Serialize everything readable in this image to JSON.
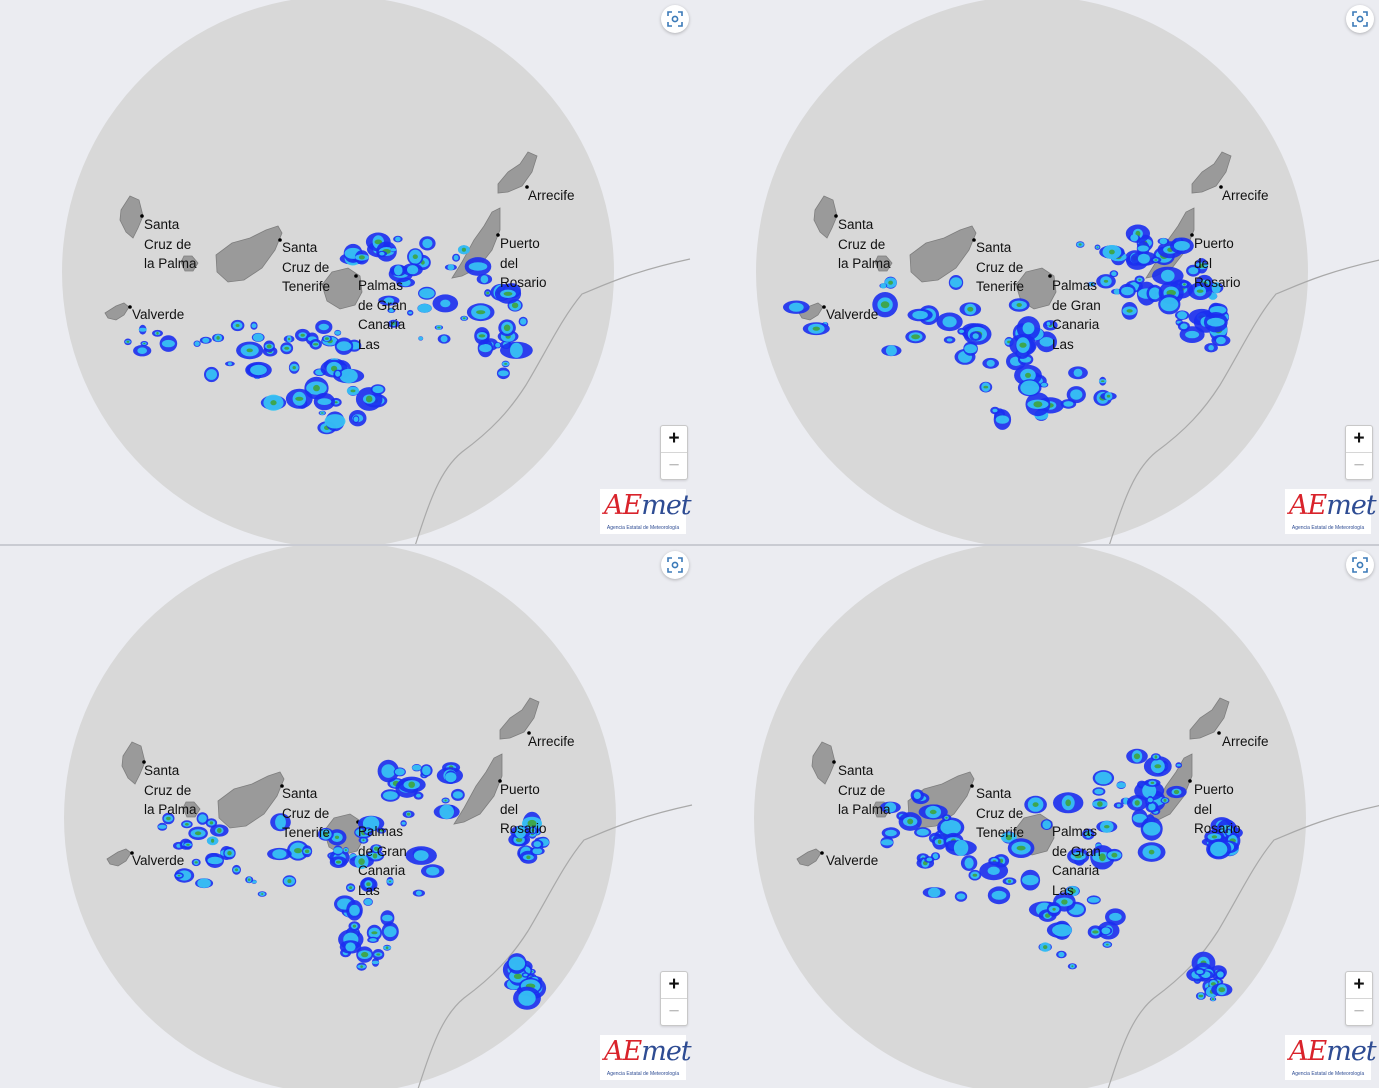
{
  "panels": [
    {
      "id": "panel-1",
      "cities": {
        "santa_cruz_palma": "Santa\nCruz de\nla Palma",
        "santa_cruz_tenerife": "Santa\nCruz de\nTenerife",
        "las_palmas": "Palmas\nde Gran\nCanaria\nLas",
        "arrecife": "Arrecife",
        "puerto_del_rosario": "Puerto\ndel\nRosario",
        "valverde": "Valverde"
      }
    },
    {
      "id": "panel-2",
      "cities": {
        "santa_cruz_palma": "Santa\nCruz de\nla Palma",
        "santa_cruz_tenerife": "Santa\nCruz de\nTenerife",
        "las_palmas": "Palmas\nde Gran\nCanaria\nLas",
        "arrecife": "Arrecife",
        "puerto_del_rosario": "Puerto\ndel\nRosario",
        "valverde": "Valverde"
      }
    },
    {
      "id": "panel-3",
      "cities": {
        "santa_cruz_palma": "Santa\nCruz de\nla Palma",
        "santa_cruz_tenerife": "Santa\nCruz de\nTenerife",
        "las_palmas": "Palmas\nde Gran\nCanaria\nLas",
        "arrecife": "Arrecife",
        "puerto_del_rosario": "Puerto\ndel\nRosario",
        "valverde": "Valverde"
      }
    },
    {
      "id": "panel-4",
      "cities": {
        "santa_cruz_palma": "Santa\nCruz de\nla Palma",
        "santa_cruz_tenerife": "Santa\nCruz de\nTenerife",
        "las_palmas": "Palmas\nde Gran\nCanaria\nLas",
        "arrecife": "Arrecife",
        "puerto_del_rosario": "Puerto\ndel\nRosario",
        "valverde": "Valverde"
      }
    }
  ],
  "controls": {
    "zoom_in": "+",
    "zoom_out": "−",
    "fit_icon": "focus-icon"
  },
  "logo": {
    "brand": "AEmet",
    "brand_first": "AE",
    "brand_rest": "met",
    "subtitle": "Agencia Estatal de Meteorología"
  },
  "colors": {
    "radar_circle": "#d8d8d8",
    "background": "#ebecf1",
    "island": "#9a9a9a",
    "precip_light": "#1b2ff0",
    "precip_mid": "#37c8f3",
    "precip_heavy": "#3fa43c",
    "logo_blue": "#2e4c93",
    "logo_red": "#d9232b"
  }
}
